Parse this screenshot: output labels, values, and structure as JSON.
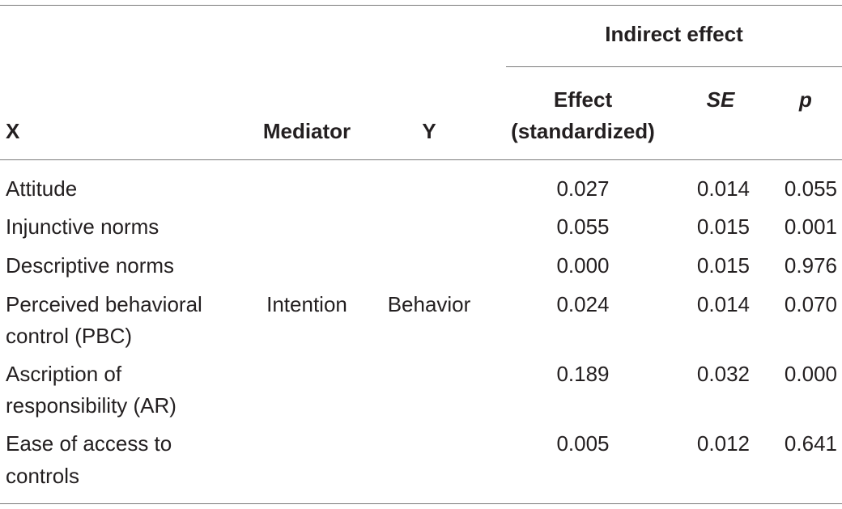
{
  "header": {
    "group": "Indirect effect",
    "x": "X",
    "mediator": "Mediator",
    "y": "Y",
    "effect_line1": "Effect",
    "effect_line2": "(standardized)",
    "se": "SE",
    "p": "p"
  },
  "mediator_value": "Intention",
  "y_value": "Behavior",
  "rows": [
    {
      "x_line1": "Attitude",
      "x_line2": "",
      "effect": "0.027",
      "se": "0.014",
      "p": "0.055"
    },
    {
      "x_line1": "Injunctive norms",
      "x_line2": "",
      "effect": "0.055",
      "se": "0.015",
      "p": "0.001"
    },
    {
      "x_line1": "Descriptive norms",
      "x_line2": "",
      "effect": "0.000",
      "se": "0.015",
      "p": "0.976"
    },
    {
      "x_line1": "Perceived behavioral",
      "x_line2": "control (PBC)",
      "effect": "0.024",
      "se": "0.014",
      "p": "0.070"
    },
    {
      "x_line1": "Ascription of",
      "x_line2": "responsibility (AR)",
      "effect": "0.189",
      "se": "0.032",
      "p": "0.000"
    },
    {
      "x_line1": "Ease of access to",
      "x_line2": "controls",
      "effect": "0.005",
      "se": "0.012",
      "p": "0.641"
    }
  ]
}
